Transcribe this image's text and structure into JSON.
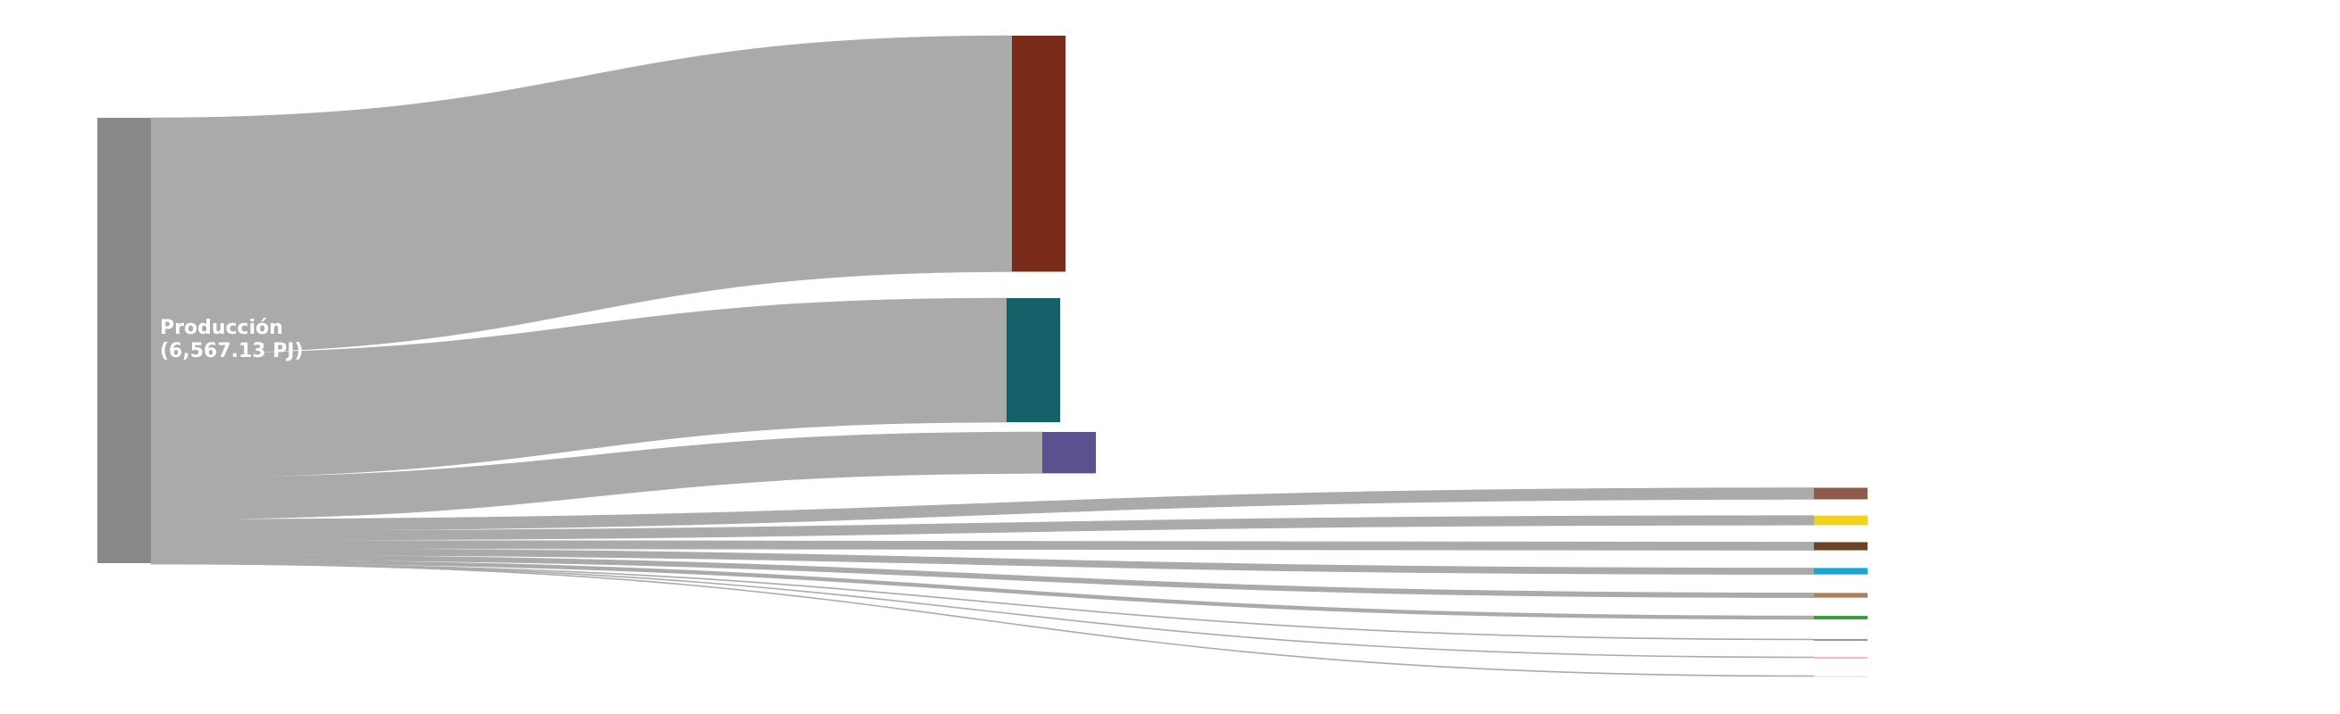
{
  "chart_data": {
    "type": "sankey",
    "unit": "PJ",
    "source": {
      "name": "Producción",
      "value_label": "(6,567.13 PJ)",
      "value": 6567.13,
      "color": "#888888"
    },
    "link_color": "#aaaaaa",
    "targets": [
      {
        "value": 3480,
        "color": "#7a2b1a"
      },
      {
        "value": 1830,
        "color": "#14616a"
      },
      {
        "value": 610,
        "color": "#5a528e"
      },
      {
        "value": 170,
        "color": "#8e5a4a"
      },
      {
        "value": 140,
        "color": "#f2d21a"
      },
      {
        "value": 120,
        "color": "#6e4324"
      },
      {
        "value": 95,
        "color": "#1aa5d6"
      },
      {
        "value": 70,
        "color": "#a8825c"
      },
      {
        "value": 50,
        "color": "#2e9c3a"
      },
      {
        "value": 2,
        "color": "#8a9aaa"
      },
      {
        "value": 0.13,
        "color": "#f2b8c8"
      },
      {
        "value": 0,
        "color": "#eeeeee"
      }
    ]
  }
}
